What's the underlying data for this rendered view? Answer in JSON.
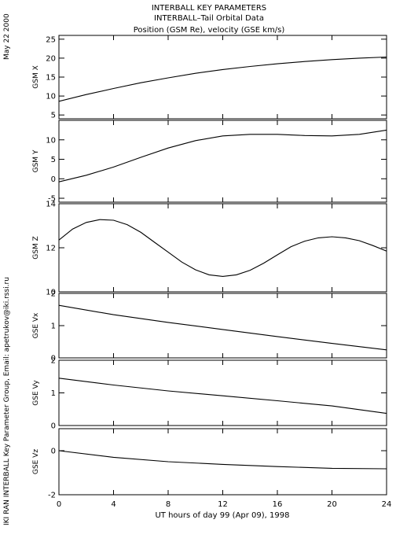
{
  "header": {
    "title1": "INTERBALL KEY PARAMETERS",
    "title2": "INTERBALL–Tail Orbital Data",
    "title3": "Position (GSM Re), velocity (GSE km/s)"
  },
  "side": {
    "date": "May 22 2000",
    "credit": "IKI RAN INTERBALL Key Parameter Group, Email: apetrukov@iki.rssi.ru"
  },
  "chart_data": [
    {
      "type": "line",
      "ylabel": "GSM X",
      "xlim": [
        0,
        24
      ],
      "ylim": [
        4,
        26
      ],
      "yticks": [
        5,
        10,
        15,
        20,
        25
      ],
      "yticklabels": [
        "5",
        "10",
        "15",
        "20",
        "25"
      ],
      "x": [
        0,
        2,
        4,
        6,
        8,
        10,
        12,
        14,
        16,
        18,
        20,
        22,
        24
      ],
      "y": [
        8.6,
        10.4,
        12.0,
        13.5,
        14.8,
        16.0,
        17.0,
        17.8,
        18.5,
        19.1,
        19.6,
        20.0,
        20.3
      ]
    },
    {
      "type": "line",
      "ylabel": "GSM Y",
      "xlim": [
        0,
        24
      ],
      "ylim": [
        -6,
        15
      ],
      "yticks": [
        -5,
        0,
        5,
        10
      ],
      "yticklabels": [
        "-5",
        "0",
        "5",
        "10"
      ],
      "x": [
        0,
        2,
        4,
        6,
        8,
        10,
        12,
        14,
        16,
        18,
        20,
        22,
        24
      ],
      "y": [
        -0.8,
        0.9,
        3.0,
        5.5,
        7.9,
        9.8,
        11.0,
        11.4,
        11.4,
        11.1,
        11.0,
        11.4,
        12.5
      ]
    },
    {
      "type": "line",
      "ylabel": "GSM Z",
      "xlim": [
        0,
        24
      ],
      "ylim": [
        10,
        14
      ],
      "yticks": [
        10,
        12,
        14
      ],
      "yticklabels": [
        "10",
        "12",
        "14"
      ],
      "x": [
        0,
        1,
        2,
        3,
        4,
        5,
        6,
        7,
        8,
        9,
        10,
        11,
        12,
        13,
        14,
        15,
        16,
        17,
        18,
        19,
        20,
        21,
        22,
        23,
        24
      ],
      "y": [
        12.35,
        12.85,
        13.15,
        13.28,
        13.25,
        13.05,
        12.7,
        12.25,
        11.8,
        11.35,
        11.0,
        10.77,
        10.7,
        10.77,
        10.98,
        11.3,
        11.68,
        12.05,
        12.3,
        12.45,
        12.5,
        12.45,
        12.32,
        12.1,
        11.85
      ]
    },
    {
      "type": "line",
      "ylabel": "GSE Vx",
      "xlim": [
        0,
        24
      ],
      "ylim": [
        0,
        2
      ],
      "yticks": [
        0,
        1,
        2
      ],
      "yticklabels": [
        "0",
        "1",
        "2"
      ],
      "x": [
        0,
        4,
        8,
        12,
        16,
        20,
        24
      ],
      "y": [
        1.63,
        1.34,
        1.1,
        0.88,
        0.66,
        0.45,
        0.25
      ]
    },
    {
      "type": "line",
      "ylabel": "GSE Vy",
      "xlim": [
        0,
        24
      ],
      "ylim": [
        0,
        2
      ],
      "yticks": [
        0,
        1,
        2
      ],
      "yticklabels": [
        "0",
        "1",
        "2"
      ],
      "x": [
        0,
        4,
        8,
        12,
        16,
        20,
        24
      ],
      "y": [
        1.45,
        1.24,
        1.06,
        0.91,
        0.76,
        0.6,
        0.37
      ]
    },
    {
      "type": "line",
      "ylabel": "GSE Vz",
      "xlim": [
        0,
        24
      ],
      "ylim": [
        -2,
        1
      ],
      "yticks": [
        -2,
        0
      ],
      "yticklabels": [
        "-2",
        "0"
      ],
      "x": [
        0,
        4,
        8,
        12,
        16,
        20,
        24
      ],
      "y": [
        0.0,
        -0.3,
        -0.5,
        -0.62,
        -0.72,
        -0.8,
        -0.82
      ]
    }
  ],
  "xaxis": {
    "ticks": [
      0,
      4,
      8,
      12,
      16,
      20,
      24
    ],
    "ticklabels": [
      "0",
      "4",
      "8",
      "12",
      "16",
      "20",
      "24"
    ],
    "label": "UT hours of day  99 (Apr 09), 1998"
  }
}
